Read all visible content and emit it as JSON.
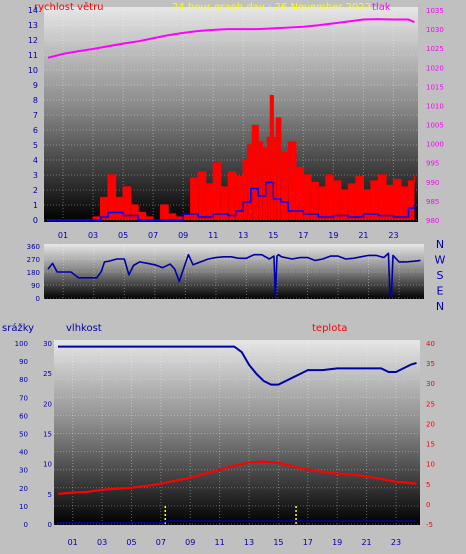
{
  "header": {
    "wind_label": "rychlost větru",
    "title": "24 hour graph day : 26 November 2022",
    "pressure_label": "tlak"
  },
  "colors": {
    "wind_red": "#ff0000",
    "wind_blue": "#0000ff",
    "pressure": "#ff00ff",
    "direction": "#0000a8",
    "humidity": "#0000a8",
    "temperature": "#ff0000",
    "rain": "#ffff00",
    "title": "#ffff00",
    "axis_blue": "#0000a8"
  },
  "x_axis": {
    "tick_labels": [
      "01",
      "03",
      "05",
      "07",
      "09",
      "11",
      "13",
      "15",
      "17",
      "19",
      "21",
      "23"
    ],
    "tick_hours": [
      1,
      3,
      5,
      7,
      9,
      11,
      13,
      15,
      17,
      19,
      21,
      23
    ],
    "range_hours": [
      0,
      24.5
    ]
  },
  "chart_data": [
    {
      "type": "line",
      "name": "wind-pressure-panel",
      "title": "24 hour graph day : 26 November 2022",
      "y_left": {
        "label": "rychlost větru",
        "ticks": [
          0,
          1,
          2,
          3,
          4,
          5,
          6,
          7,
          8,
          9,
          10,
          11,
          12,
          13,
          14
        ],
        "range": [
          0,
          14
        ]
      },
      "y_right": {
        "label": "tlak",
        "ticks": [
          980,
          985,
          990,
          995,
          1000,
          1005,
          1010,
          1015,
          1020,
          1025,
          1030,
          1035
        ],
        "range": [
          980,
          1035
        ]
      },
      "series": [
        {
          "kind": "pressure",
          "x": [
            0,
            1,
            2,
            3,
            4,
            5,
            6,
            7,
            8,
            9,
            10,
            11,
            12,
            13,
            14,
            15,
            16,
            17,
            18,
            19,
            20,
            21,
            22,
            23,
            24,
            24.4
          ],
          "y": [
            1022.5,
            1023.5,
            1024.2,
            1024.8,
            1025.5,
            1026.2,
            1026.8,
            1027.6,
            1028.4,
            1029.0,
            1029.5,
            1029.8,
            1030.0,
            1030.0,
            1030.0,
            1030.2,
            1030.4,
            1030.6,
            1031.0,
            1031.5,
            1032.0,
            1032.5,
            1032.6,
            1032.5,
            1032.5,
            1031.8
          ]
        },
        {
          "kind": "wind-gust",
          "x": [
            0,
            1,
            2,
            3,
            3.5,
            4,
            4.5,
            5,
            5.5,
            6,
            6.5,
            7,
            7.5,
            8,
            8.5,
            9,
            9.5,
            10,
            10.5,
            11,
            11.5,
            12,
            12.5,
            13,
            13.3,
            13.6,
            14,
            14.3,
            14.6,
            14.8,
            15,
            15.2,
            15.5,
            16,
            16.5,
            17,
            17.5,
            18,
            18.5,
            19,
            19.5,
            20,
            20.5,
            21,
            21.5,
            22,
            22.5,
            23,
            23.5,
            24,
            24.4
          ],
          "y": [
            0,
            0,
            0,
            0.2,
            1.5,
            3,
            1.5,
            2.2,
            1,
            0.5,
            0.2,
            0,
            1,
            0.4,
            0.2,
            0.3,
            2.8,
            3.2,
            2.4,
            3.8,
            2.2,
            3.2,
            2.9,
            4.0,
            5.0,
            6.3,
            5.2,
            4.8,
            5.5,
            8.3,
            5.5,
            6.8,
            4.5,
            5.2,
            3.5,
            3.0,
            2.5,
            2.2,
            3.0,
            2.6,
            2.0,
            2.4,
            2.9,
            2.0,
            2.6,
            3.0,
            2.3,
            2.7,
            2.2,
            2.6,
            3.0
          ]
        },
        {
          "kind": "wind-avg",
          "x": [
            0,
            3,
            3.5,
            4,
            5,
            6,
            7,
            8,
            9,
            10,
            11,
            12,
            12.5,
            13,
            13.5,
            14,
            14.5,
            15,
            15.5,
            16,
            17,
            18,
            19,
            20,
            21,
            22,
            23,
            24,
            24.4
          ],
          "y": [
            0,
            0,
            0.2,
            0.5,
            0.3,
            0,
            0,
            0,
            0.4,
            0.2,
            0.4,
            0.3,
            0.6,
            1.2,
            2.1,
            1.6,
            2.5,
            1.4,
            1.2,
            0.6,
            0.4,
            0.2,
            0.3,
            0.2,
            0.4,
            0.3,
            0.2,
            0.8,
            1.0
          ]
        }
      ]
    },
    {
      "type": "line",
      "name": "wind-direction-panel",
      "y_left": {
        "ticks": [
          0,
          90,
          180,
          270,
          360
        ],
        "range": [
          0,
          360
        ]
      },
      "y_right": {
        "ticks": [
          "N",
          "W",
          "S",
          "E",
          "N"
        ]
      },
      "series": [
        {
          "kind": "direction",
          "x": [
            0,
            0.3,
            0.6,
            1,
            1.5,
            2,
            2.5,
            3,
            3.2,
            3.5,
            3.7,
            4,
            4.5,
            5,
            5.3,
            5.6,
            6,
            6.5,
            7,
            7.5,
            8,
            8.3,
            8.6,
            9,
            9.2,
            9.5,
            10,
            10.5,
            11,
            11.5,
            12,
            12.5,
            13,
            13.5,
            14,
            14.5,
            14.8,
            14.9,
            15,
            15.1,
            15.3,
            16,
            16.5,
            17,
            17.5,
            18,
            18.5,
            19,
            19.5,
            20,
            20.5,
            21,
            21.5,
            22,
            22.3,
            22.4,
            22.5,
            22.6,
            23,
            23.5,
            24,
            24.4
          ],
          "y": [
            200,
            240,
            180,
            180,
            180,
            140,
            140,
            140,
            140,
            185,
            250,
            255,
            270,
            270,
            160,
            225,
            250,
            240,
            230,
            210,
            235,
            200,
            115,
            240,
            300,
            230,
            250,
            270,
            280,
            285,
            285,
            275,
            275,
            300,
            300,
            270,
            290,
            5,
            290,
            300,
            285,
            270,
            280,
            280,
            260,
            270,
            290,
            290,
            270,
            275,
            285,
            295,
            295,
            280,
            310,
            30,
            10,
            295,
            250,
            250,
            255,
            260
          ]
        }
      ]
    },
    {
      "type": "line",
      "name": "humidity-temperature-panel",
      "y_axis_1": {
        "label": "srážky",
        "ticks": [
          0,
          5,
          10,
          15,
          20,
          25,
          30
        ],
        "range": [
          0,
          30
        ]
      },
      "y_axis_2": {
        "label": "vlhkost",
        "ticks": [
          0,
          10,
          20,
          30,
          40,
          50,
          60,
          70,
          80,
          90,
          100
        ],
        "range": [
          0,
          100
        ]
      },
      "y_axis_3": {
        "label": "teplota",
        "ticks": [
          -5,
          0,
          5,
          10,
          15,
          20,
          25,
          30,
          35,
          40
        ],
        "range": [
          -5,
          40
        ]
      },
      "series": [
        {
          "kind": "humidity",
          "x": [
            0,
            2,
            4,
            6,
            8,
            10,
            11,
            12,
            12.5,
            13,
            13.5,
            14,
            14.5,
            15,
            15.5,
            16,
            16.5,
            17,
            18,
            19,
            20,
            21,
            22,
            22.5,
            23,
            23.5,
            24,
            24.4
          ],
          "y": [
            98,
            98,
            98,
            98,
            98,
            98,
            98,
            98,
            95,
            88,
            83,
            79,
            77,
            77,
            79,
            81,
            83,
            85,
            85,
            86,
            86,
            86,
            86,
            84,
            84,
            86,
            88,
            89
          ]
        },
        {
          "kind": "temperature",
          "x": [
            0,
            1,
            2,
            3,
            4,
            5,
            6,
            7,
            8,
            9,
            10,
            11,
            12,
            13,
            14,
            15,
            16,
            17,
            18,
            19,
            20,
            21,
            22,
            23,
            24,
            24.4
          ],
          "y": [
            2.5,
            2.8,
            3.0,
            3.5,
            3.8,
            4.0,
            4.5,
            5.0,
            5.8,
            6.5,
            7.5,
            8.5,
            9.5,
            10.3,
            10.5,
            10.2,
            9.3,
            8.5,
            8.0,
            7.5,
            7.3,
            6.8,
            6.2,
            5.5,
            5.2,
            5.0
          ]
        },
        {
          "kind": "rain",
          "x": [
            7.3,
            16.2
          ],
          "y": [
            3,
            3
          ]
        }
      ]
    }
  ]
}
